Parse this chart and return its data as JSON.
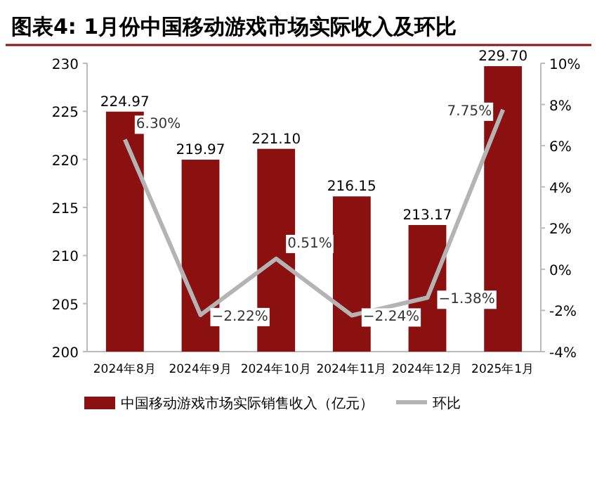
{
  "chart_data": {
    "type": "bar",
    "title": "图表4:   1月份中国移动游戏市场实际收入及环比",
    "categories": [
      "2024年8月",
      "2024年9月",
      "2024年10月",
      "2024年11月",
      "2024年12月",
      "2025年1月"
    ],
    "series": [
      {
        "name": "中国移动游戏市场实际销售收入（亿元）",
        "type": "bar",
        "color": "#8b1010",
        "values": [
          224.97,
          219.97,
          221.1,
          216.15,
          213.17,
          229.7
        ],
        "value_labels": [
          "224.97",
          "219.97",
          "221.10",
          "216.15",
          "213.17",
          "229.70"
        ]
      },
      {
        "name": "环比",
        "type": "line",
        "axis": "y2",
        "color": "#b4b4b4",
        "values": [
          6.3,
          -2.22,
          0.51,
          -2.24,
          -1.38,
          7.75
        ],
        "value_labels": [
          "6.30%",
          "−2.22%",
          "0.51%",
          "−2.24%",
          "−1.38%",
          "7.75%"
        ]
      }
    ],
    "ylim": [
      200,
      230
    ],
    "yticks": [
      200,
      205,
      210,
      215,
      220,
      225,
      230
    ],
    "y2lim": [
      -4,
      10
    ],
    "y2ticks": [
      {
        "value": -4,
        "label": "-4%"
      },
      {
        "value": -2,
        "label": "-2%"
      },
      {
        "value": 0,
        "label": "0%"
      },
      {
        "value": 2,
        "label": "2%"
      },
      {
        "value": 4,
        "label": "4%"
      },
      {
        "value": 6,
        "label": "6%"
      },
      {
        "value": 8,
        "label": "8%"
      },
      {
        "value": 10,
        "label": "10%"
      }
    ],
    "legend": "bottom"
  }
}
